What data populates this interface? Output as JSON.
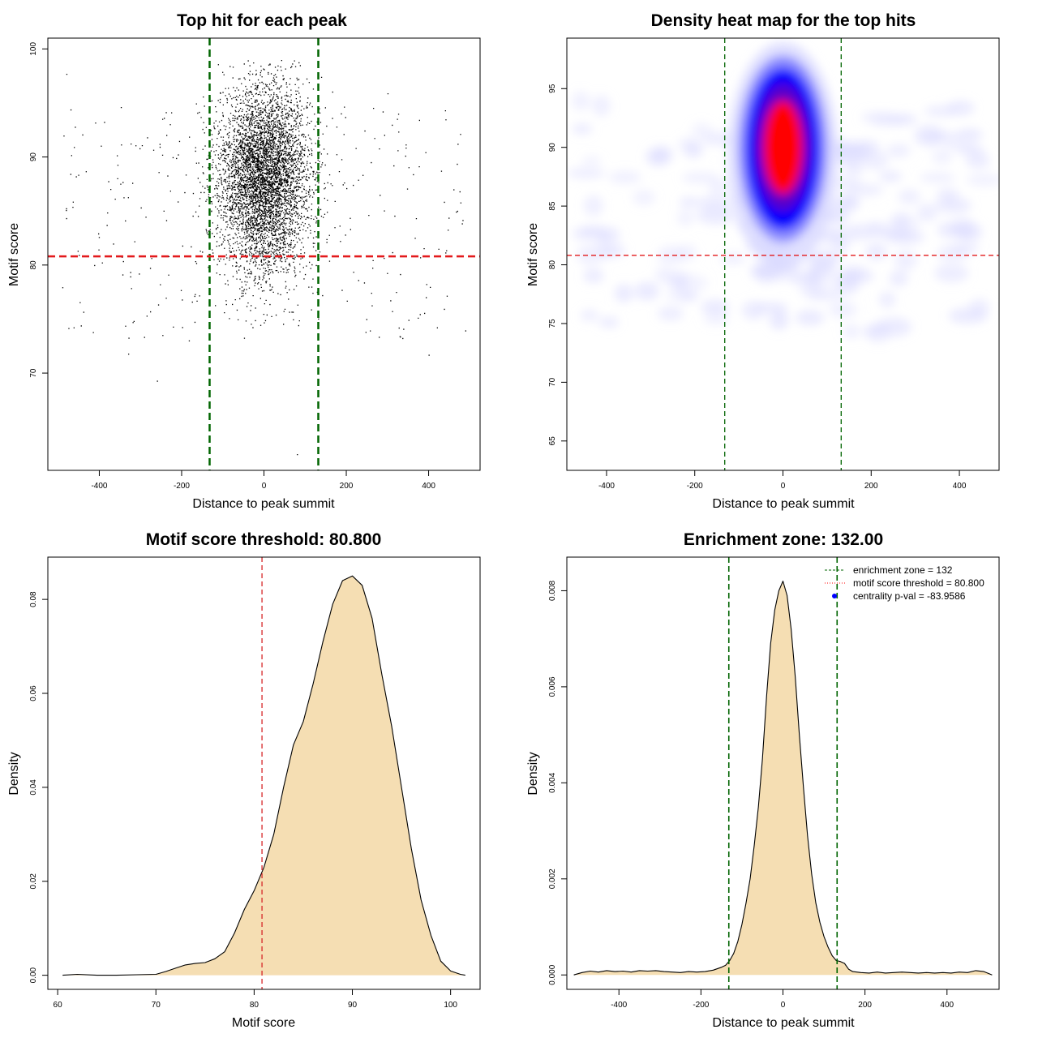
{
  "chart_data": [
    {
      "type": "scatter",
      "title": "Top hit for each peak",
      "xlabel": "Distance to peak summit",
      "ylabel": "Motif score",
      "xlim": [
        -525,
        525
      ],
      "ylim": [
        61,
        101
      ],
      "xticks": [
        -400,
        -200,
        0,
        200,
        400
      ],
      "yticks": [
        70,
        80,
        90,
        100
      ],
      "vlines": [
        -132,
        132
      ],
      "hline": 80.8,
      "points": {
        "core": {
          "x_center": 0,
          "x_sd": 55,
          "y_center": 88,
          "y_sd": 4.2,
          "y_min": 74,
          "y_max": 99,
          "approx_count": 5200
        },
        "background": {
          "x_range": [
            -490,
            490
          ],
          "y_range": [
            69,
            97
          ],
          "approx_count": 320
        },
        "outliers": [
          [
            -480,
            97.7
          ],
          [
            -470,
            94.4
          ],
          [
            300,
            95.9
          ],
          [
            -260,
            69.3
          ],
          [
            80,
            62.5
          ],
          [
            400,
            71.7
          ],
          [
            -330,
            71.8
          ]
        ]
      },
      "grid": false
    },
    {
      "type": "heatmap",
      "title": "Density heat map for the top hits",
      "xlabel": "Distance to peak summit",
      "ylabel": "Motif score",
      "xlim": [
        -490,
        490
      ],
      "ylim": [
        62.5,
        99.3
      ],
      "xticks": [
        -400,
        -200,
        0,
        200,
        400
      ],
      "yticks": [
        65,
        70,
        75,
        80,
        85,
        90,
        95
      ],
      "vlines": [
        -132,
        132
      ],
      "hline": 80.8,
      "peak": {
        "x": 0,
        "y": 90
      },
      "colors": [
        "#ffffff",
        "#0000ff",
        "#ff0000"
      ],
      "grid": false
    },
    {
      "type": "area",
      "title": "Motif score threshold: 80.800",
      "xlabel": "Motif score",
      "ylabel": "Density",
      "xlim": [
        59,
        103
      ],
      "ylim": [
        -0.003,
        0.089
      ],
      "xticks": [
        60,
        70,
        80,
        90,
        100
      ],
      "yticks": [
        0.0,
        0.02,
        0.04,
        0.06,
        0.08
      ],
      "ytick_labels": [
        "0.00",
        "0.02",
        "0.04",
        "0.06",
        "0.08"
      ],
      "vline": 80.8,
      "x": [
        60.5,
        62,
        64,
        66,
        68,
        70,
        71,
        72,
        73,
        74,
        75,
        76,
        77,
        78,
        79,
        80,
        81,
        82,
        83,
        84,
        85,
        86,
        87,
        88,
        89,
        90,
        91,
        92,
        93,
        94,
        95,
        96,
        97,
        98,
        99,
        100,
        101,
        101.5
      ],
      "values": [
        0.0,
        0.0002,
        0.0,
        0.0,
        0.0001,
        0.0002,
        0.0008,
        0.0015,
        0.0022,
        0.0025,
        0.0027,
        0.0035,
        0.005,
        0.009,
        0.014,
        0.018,
        0.023,
        0.03,
        0.04,
        0.049,
        0.054,
        0.062,
        0.071,
        0.079,
        0.084,
        0.085,
        0.083,
        0.076,
        0.064,
        0.053,
        0.04,
        0.027,
        0.016,
        0.0085,
        0.003,
        0.0009,
        0.0002,
        0.0
      ],
      "fill": "#f5deb3",
      "grid": false
    },
    {
      "type": "area",
      "title": "Enrichment zone: 132.00",
      "xlabel": "Distance to peak summit",
      "ylabel": "Density",
      "xlim": [
        -527,
        527
      ],
      "ylim": [
        -0.0003,
        0.0087
      ],
      "xticks": [
        -400,
        -200,
        0,
        200,
        400
      ],
      "yticks": [
        0.0,
        0.002,
        0.004,
        0.006,
        0.008
      ],
      "ytick_labels": [
        "0.000",
        "0.002",
        "0.004",
        "0.006",
        "0.008"
      ],
      "vlines": [
        -132,
        132
      ],
      "x": [
        -510,
        -490,
        -470,
        -450,
        -430,
        -410,
        -390,
        -370,
        -350,
        -330,
        -310,
        -290,
        -270,
        -250,
        -230,
        -210,
        -190,
        -170,
        -150,
        -140,
        -130,
        -120,
        -110,
        -100,
        -90,
        -80,
        -70,
        -60,
        -50,
        -40,
        -30,
        -20,
        -10,
        0,
        10,
        20,
        30,
        40,
        50,
        60,
        70,
        80,
        90,
        100,
        110,
        120,
        130,
        140,
        150,
        160,
        170,
        190,
        210,
        230,
        250,
        270,
        290,
        310,
        330,
        350,
        370,
        390,
        410,
        430,
        450,
        470,
        490,
        510
      ],
      "values": [
        0.0,
        5e-05,
        8e-05,
        6e-05,
        9e-05,
        7e-05,
        8e-05,
        6e-05,
        9e-05,
        8e-05,
        9e-05,
        7e-05,
        6e-05,
        5e-05,
        7e-05,
        6e-05,
        7e-05,
        0.0001,
        0.00016,
        0.0002,
        0.0003,
        0.00045,
        0.0007,
        0.00105,
        0.0015,
        0.002,
        0.0027,
        0.0035,
        0.0045,
        0.0058,
        0.0069,
        0.0076,
        0.008,
        0.0082,
        0.0079,
        0.0072,
        0.0062,
        0.005,
        0.0039,
        0.0029,
        0.0021,
        0.0015,
        0.0011,
        0.0008,
        0.00058,
        0.0004,
        0.0003,
        0.00028,
        0.00024,
        0.00012,
        7e-05,
        5e-05,
        4e-05,
        6e-05,
        4e-05,
        5e-05,
        6e-05,
        5e-05,
        4e-05,
        5e-05,
        4e-05,
        5e-05,
        4e-05,
        6e-05,
        5e-05,
        9e-05,
        7e-05,
        0.0
      ],
      "fill": "#f5deb3",
      "legend": {
        "placement": "top-right",
        "entries": [
          {
            "label": "enrichment zone = 132",
            "color": "#006400",
            "style": "dashed"
          },
          {
            "label": "motif score threshold = 80.800",
            "color": "#ff0000",
            "style": "dotted"
          },
          {
            "label": "centrality p-val = -83.9586",
            "color": "#0000ff",
            "style": "point"
          }
        ]
      },
      "grid": false
    }
  ]
}
